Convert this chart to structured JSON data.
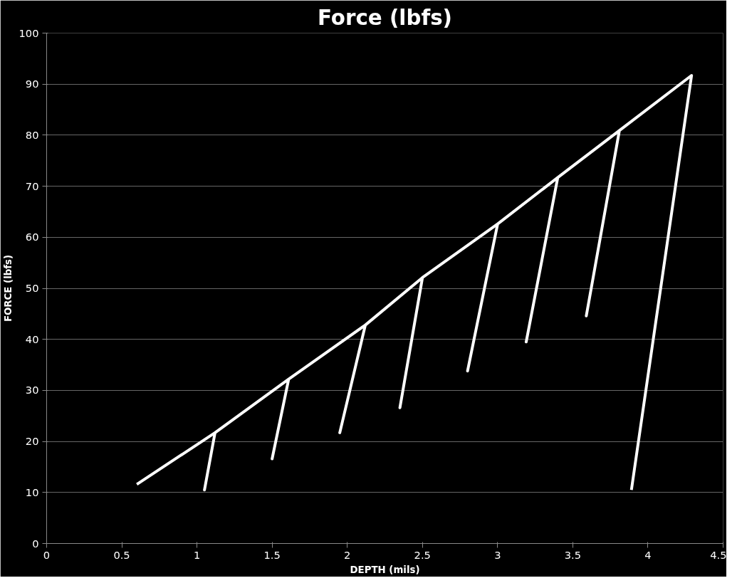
{
  "chart_data": {
    "type": "line",
    "title": "Force (lbfs)",
    "xlabel": "DEPTH (mils)",
    "ylabel": "FORCE (lbfs)",
    "series": [
      {
        "color": "#ffffff",
        "x": [
          0.6,
          1.12,
          1.05,
          1.12,
          1.61,
          1.5,
          1.61,
          2.12,
          1.95,
          2.12,
          2.5,
          2.35,
          2.5,
          3.0,
          2.8,
          3.0,
          3.4,
          3.19,
          3.4,
          3.81,
          3.59,
          3.81,
          4.29,
          3.89
        ],
        "values": [
          11.6,
          21.7,
          10.5,
          21.7,
          32.2,
          16.6,
          32.2,
          42.8,
          21.7,
          42.8,
          52.1,
          26.6,
          52.1,
          62.6,
          33.8,
          62.6,
          71.7,
          39.5,
          71.7,
          80.9,
          44.6,
          80.9,
          91.7,
          10.5
        ]
      }
    ],
    "xlim": [
      0,
      4.5
    ],
    "xticks": [
      0,
      0.5,
      1,
      1.5,
      2,
      2.5,
      3,
      3.5,
      4,
      4.5
    ],
    "ylim": [
      0,
      100
    ],
    "yticks": [
      0,
      10,
      20,
      30,
      40,
      50,
      60,
      70,
      80,
      90,
      100
    ],
    "grid": "y",
    "marker": "none",
    "line_style": "solid"
  }
}
